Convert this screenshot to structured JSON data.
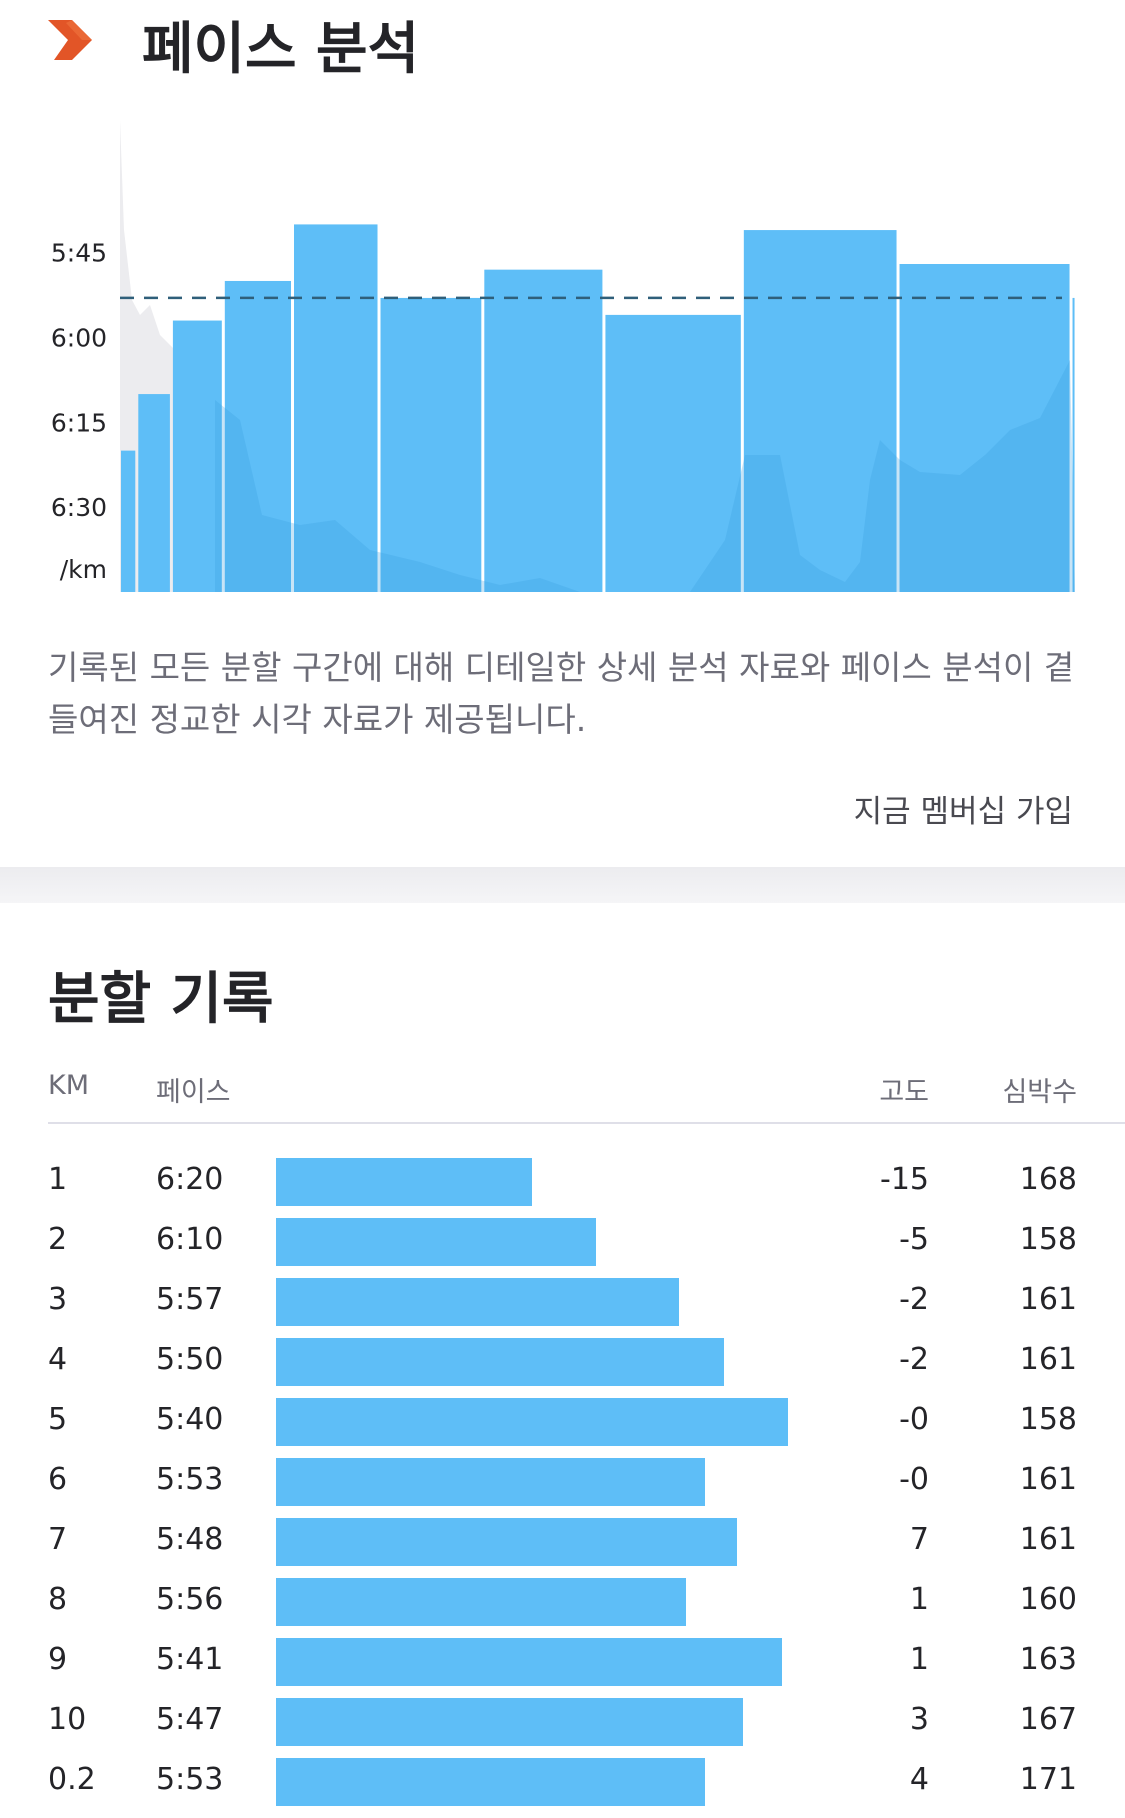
{
  "header": {
    "title": "페이스 분석",
    "logo_color": "#e25527",
    "logo_icon": "strava-chevron-icon"
  },
  "chart_data": {
    "type": "bar",
    "unit_label": "/km",
    "y_ticks": [
      "5:45",
      "6:00",
      "6:15",
      "6:30"
    ],
    "y_tick_seconds": [
      345,
      360,
      375,
      390
    ],
    "ylim_seconds": [
      405,
      318
    ],
    "categories": [
      "1",
      "2",
      "3",
      "4",
      "5",
      "6",
      "7",
      "8",
      "9",
      "10",
      "0.2"
    ],
    "pace_seconds": [
      380,
      370,
      357,
      350,
      340,
      353,
      348,
      356,
      341,
      347,
      353
    ],
    "avg_pace_seconds": [
      353
    ],
    "bar_color": "#5ebef7",
    "avg_line_color": "#2f5f7a"
  },
  "description": "기록된 모든 분할 구간에 대해 디테일한 상세 분석 자료와 페이스 분석이 곁들여진 정교한 시각 자료가 제공됩니다.",
  "cta_label": "지금 멤버십 가입",
  "splits": {
    "title": "분할 기록",
    "headers": {
      "km": "KM",
      "pace": "페이스",
      "elev": "고도",
      "hr": "심박수"
    },
    "rows": [
      {
        "km": "1",
        "pace": "6:20",
        "pace_seconds": 380,
        "elev": "-15",
        "hr": "168"
      },
      {
        "km": "2",
        "pace": "6:10",
        "pace_seconds": 370,
        "elev": "-5",
        "hr": "158"
      },
      {
        "km": "3",
        "pace": "5:57",
        "pace_seconds": 357,
        "elev": "-2",
        "hr": "161"
      },
      {
        "km": "4",
        "pace": "5:50",
        "pace_seconds": 350,
        "elev": "-2",
        "hr": "161"
      },
      {
        "km": "5",
        "pace": "5:40",
        "pace_seconds": 340,
        "elev": "-0",
        "hr": "158"
      },
      {
        "km": "6",
        "pace": "5:53",
        "pace_seconds": 353,
        "elev": "-0",
        "hr": "161"
      },
      {
        "km": "7",
        "pace": "5:48",
        "pace_seconds": 348,
        "elev": "7",
        "hr": "161"
      },
      {
        "km": "8",
        "pace": "5:56",
        "pace_seconds": 356,
        "elev": "1",
        "hr": "160"
      },
      {
        "km": "9",
        "pace": "5:41",
        "pace_seconds": 341,
        "elev": "1",
        "hr": "163"
      },
      {
        "km": "10",
        "pace": "5:47",
        "pace_seconds": 347,
        "elev": "3",
        "hr": "167"
      },
      {
        "km": "0.2",
        "pace": "5:53",
        "pace_seconds": 353,
        "elev": "4",
        "hr": "171"
      }
    ]
  }
}
